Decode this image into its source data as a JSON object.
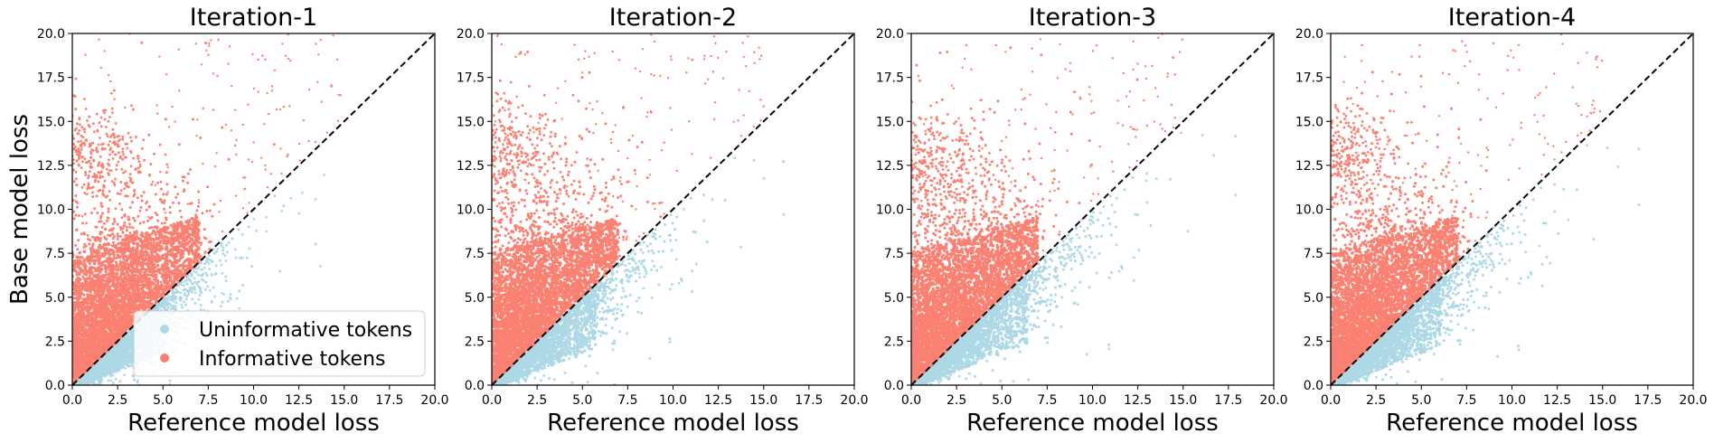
{
  "figure": {
    "ylabel": "Base model loss",
    "xlabel": "Reference model loss"
  },
  "legend": {
    "entries": [
      {
        "label": "Uninformative tokens",
        "color": "#add8e6"
      },
      {
        "label": "Informative tokens",
        "color": "#fa8072"
      }
    ]
  },
  "colors": {
    "uninformative": "#add8e6",
    "informative": "#fa8072",
    "diagonal": "#000000"
  },
  "chart_data": [
    {
      "type": "scatter",
      "title": "Iteration-1",
      "xlabel": "Reference model loss",
      "ylabel": "Base model loss",
      "xlim": [
        0,
        20
      ],
      "ylim": [
        0,
        20
      ],
      "xticks": [
        "0.0",
        "2.5",
        "5.0",
        "7.5",
        "10.0",
        "12.5",
        "15.0",
        "17.5",
        "20.0"
      ],
      "yticks": [
        "0.0",
        "2.5",
        "5.0",
        "7.5",
        "10.0",
        "12.5",
        "15.0",
        "17.5",
        "20.0"
      ],
      "reference_line": {
        "from": [
          0,
          0
        ],
        "to": [
          20,
          20
        ],
        "style": "dashed"
      },
      "series": [
        {
          "name": "Uninformative tokens",
          "spread_x": 3.0,
          "max_x": 16.5,
          "max_gap": 5.5
        },
        {
          "name": "Informative tokens",
          "spread_y": 2.8,
          "cluster": {
            "x": 0.6,
            "y": 12.8,
            "size": 0.18
          }
        }
      ]
    },
    {
      "type": "scatter",
      "title": "Iteration-2",
      "xlabel": "Reference model loss",
      "ylabel": "",
      "xlim": [
        0,
        20
      ],
      "ylim": [
        0,
        20
      ],
      "xticks": [
        "0.0",
        "2.5",
        "5.0",
        "7.5",
        "10.0",
        "12.5",
        "15.0",
        "17.5",
        "20.0"
      ],
      "yticks": [
        "0.0",
        "2.5",
        "5.0",
        "7.5",
        "10.0",
        "12.5",
        "15.0",
        "17.5",
        "20.0"
      ],
      "reference_line": {
        "from": [
          0,
          0
        ],
        "to": [
          20,
          20
        ],
        "style": "dashed"
      },
      "series": [
        {
          "name": "Uninformative tokens",
          "spread_x": 3.6,
          "max_x": 17.5,
          "max_gap": 7.5
        },
        {
          "name": "Informative tokens",
          "spread_y": 3.2,
          "cluster": {
            "x": 0.3,
            "y": 13.0,
            "size": 0.14
          }
        }
      ]
    },
    {
      "type": "scatter",
      "title": "Iteration-3",
      "xlabel": "Reference model loss",
      "ylabel": "",
      "xlim": [
        0,
        20
      ],
      "ylim": [
        0,
        20
      ],
      "xticks": [
        "0.0",
        "2.5",
        "5.0",
        "7.5",
        "10.0",
        "12.5",
        "15.0",
        "17.5",
        "20.0"
      ],
      "yticks": [
        "0.0",
        "2.5",
        "5.0",
        "7.5",
        "10.0",
        "12.5",
        "15.0",
        "17.5",
        "20.0"
      ],
      "reference_line": {
        "from": [
          0,
          0
        ],
        "to": [
          20,
          20
        ],
        "style": "dashed"
      },
      "series": [
        {
          "name": "Uninformative tokens",
          "spread_x": 4.0,
          "max_x": 18.5,
          "max_gap": 9.0
        },
        {
          "name": "Informative tokens",
          "spread_y": 3.2,
          "cluster": {
            "x": 0.4,
            "y": 12.5,
            "size": 0.14
          }
        }
      ]
    },
    {
      "type": "scatter",
      "title": "Iteration-4",
      "xlabel": "Reference model loss",
      "ylabel": "",
      "xlim": [
        0,
        20
      ],
      "ylim": [
        0,
        20
      ],
      "xticks": [
        "0.0",
        "2.5",
        "5.0",
        "7.5",
        "10.0",
        "12.5",
        "15.0",
        "17.5",
        "20.0"
      ],
      "yticks": [
        "0.0",
        "2.5",
        "5.0",
        "7.5",
        "10.0",
        "12.5",
        "15.0",
        "17.5",
        "20.0"
      ],
      "reference_line": {
        "from": [
          0,
          0
        ],
        "to": [
          20,
          20
        ],
        "style": "dashed"
      },
      "series": [
        {
          "name": "Uninformative tokens",
          "spread_x": 3.8,
          "max_x": 19.0,
          "max_gap": 8.5
        },
        {
          "name": "Informative tokens",
          "spread_y": 3.0,
          "cluster": {
            "x": 0.3,
            "y": 13.0,
            "size": 0.12
          }
        }
      ]
    }
  ]
}
